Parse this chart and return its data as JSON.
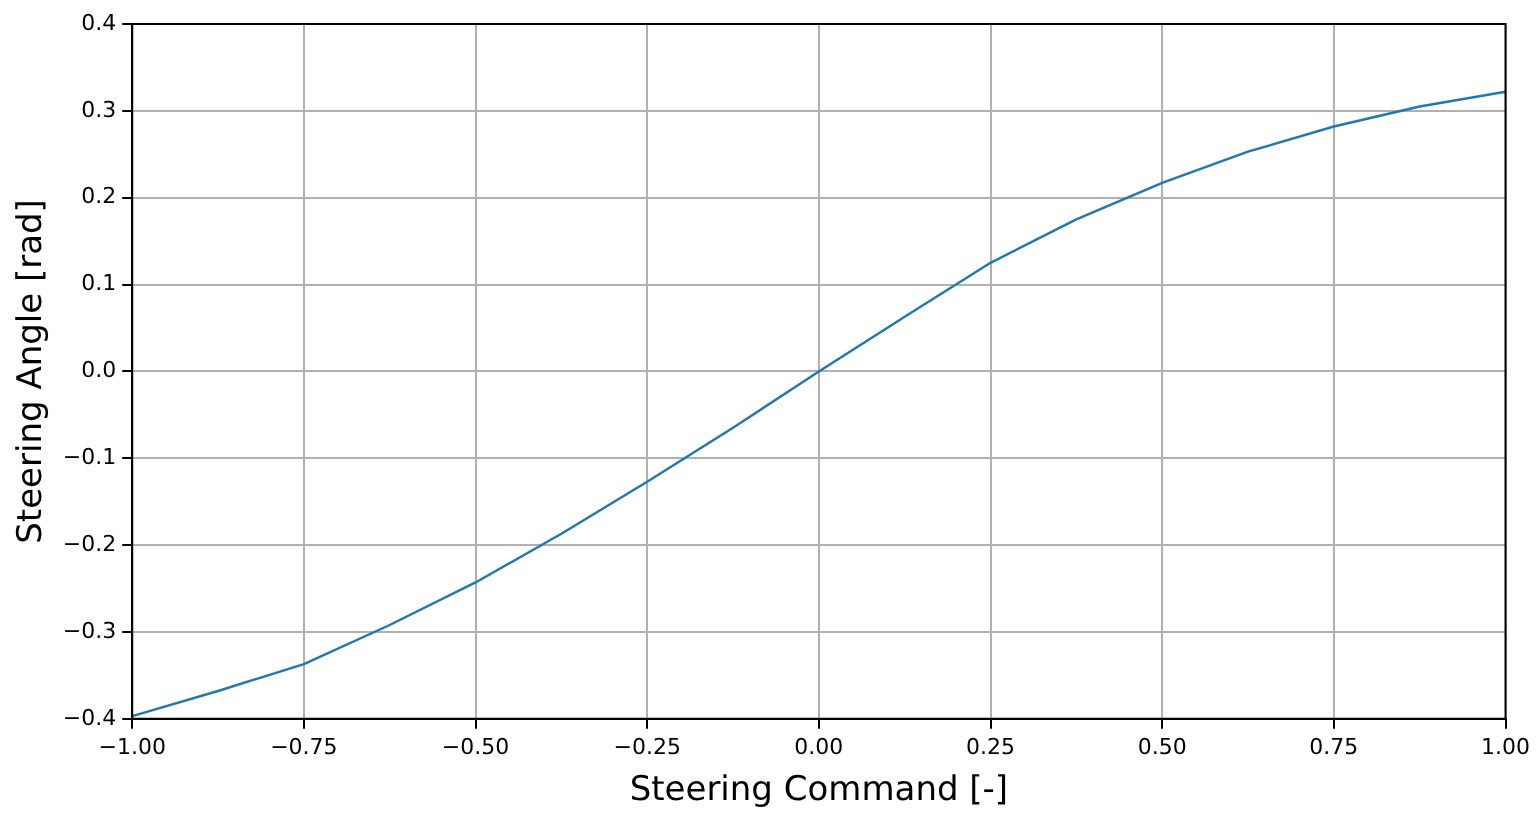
{
  "chart_data": {
    "type": "line",
    "xlabel": "Steering Command [-]",
    "ylabel": "Steering Angle [rad]",
    "x": [
      -1,
      -0.875,
      -0.75,
      -0.625,
      -0.5,
      -0.375,
      -0.25,
      -0.125,
      0,
      0.125,
      0.25,
      0.375,
      0.5,
      0.625,
      0.75,
      0.875,
      1
    ],
    "series": [
      {
        "color": "#1f77b4",
        "values": [
          -0.397,
          -0.368,
          -0.337,
          -0.292,
          -0.243,
          -0.187,
          -0.127,
          -0.065,
          0,
          0.063,
          0.125,
          0.175,
          0.217,
          0.253,
          0.282,
          0.305,
          0.322
        ]
      }
    ],
    "xlim": [
      -1,
      1
    ],
    "ylim": [
      -0.4,
      0.4
    ],
    "xticks": [
      {
        "value": -1,
        "label": "−1.00"
      },
      {
        "value": -0.75,
        "label": "−0.75"
      },
      {
        "value": -0.5,
        "label": "−0.50"
      },
      {
        "value": -0.25,
        "label": "−0.25"
      },
      {
        "value": 0,
        "label": "0.00"
      },
      {
        "value": 0.25,
        "label": "0.25"
      },
      {
        "value": 0.5,
        "label": "0.50"
      },
      {
        "value": 0.75,
        "label": "0.75"
      },
      {
        "value": 1,
        "label": "1.00"
      }
    ],
    "yticks": [
      {
        "value": -0.4,
        "label": "−0.4"
      },
      {
        "value": -0.3,
        "label": "−0.3"
      },
      {
        "value": -0.2,
        "label": "−0.2"
      },
      {
        "value": -0.1,
        "label": "−0.1"
      },
      {
        "value": 0,
        "label": "0.0"
      },
      {
        "value": 0.1,
        "label": "0.1"
      },
      {
        "value": 0.2,
        "label": "0.2"
      },
      {
        "value": 0.3,
        "label": "0.3"
      },
      {
        "value": 0.4,
        "label": "0.4"
      }
    ],
    "grid": true,
    "legend": false,
    "marker": "none",
    "line_style": "solid"
  }
}
